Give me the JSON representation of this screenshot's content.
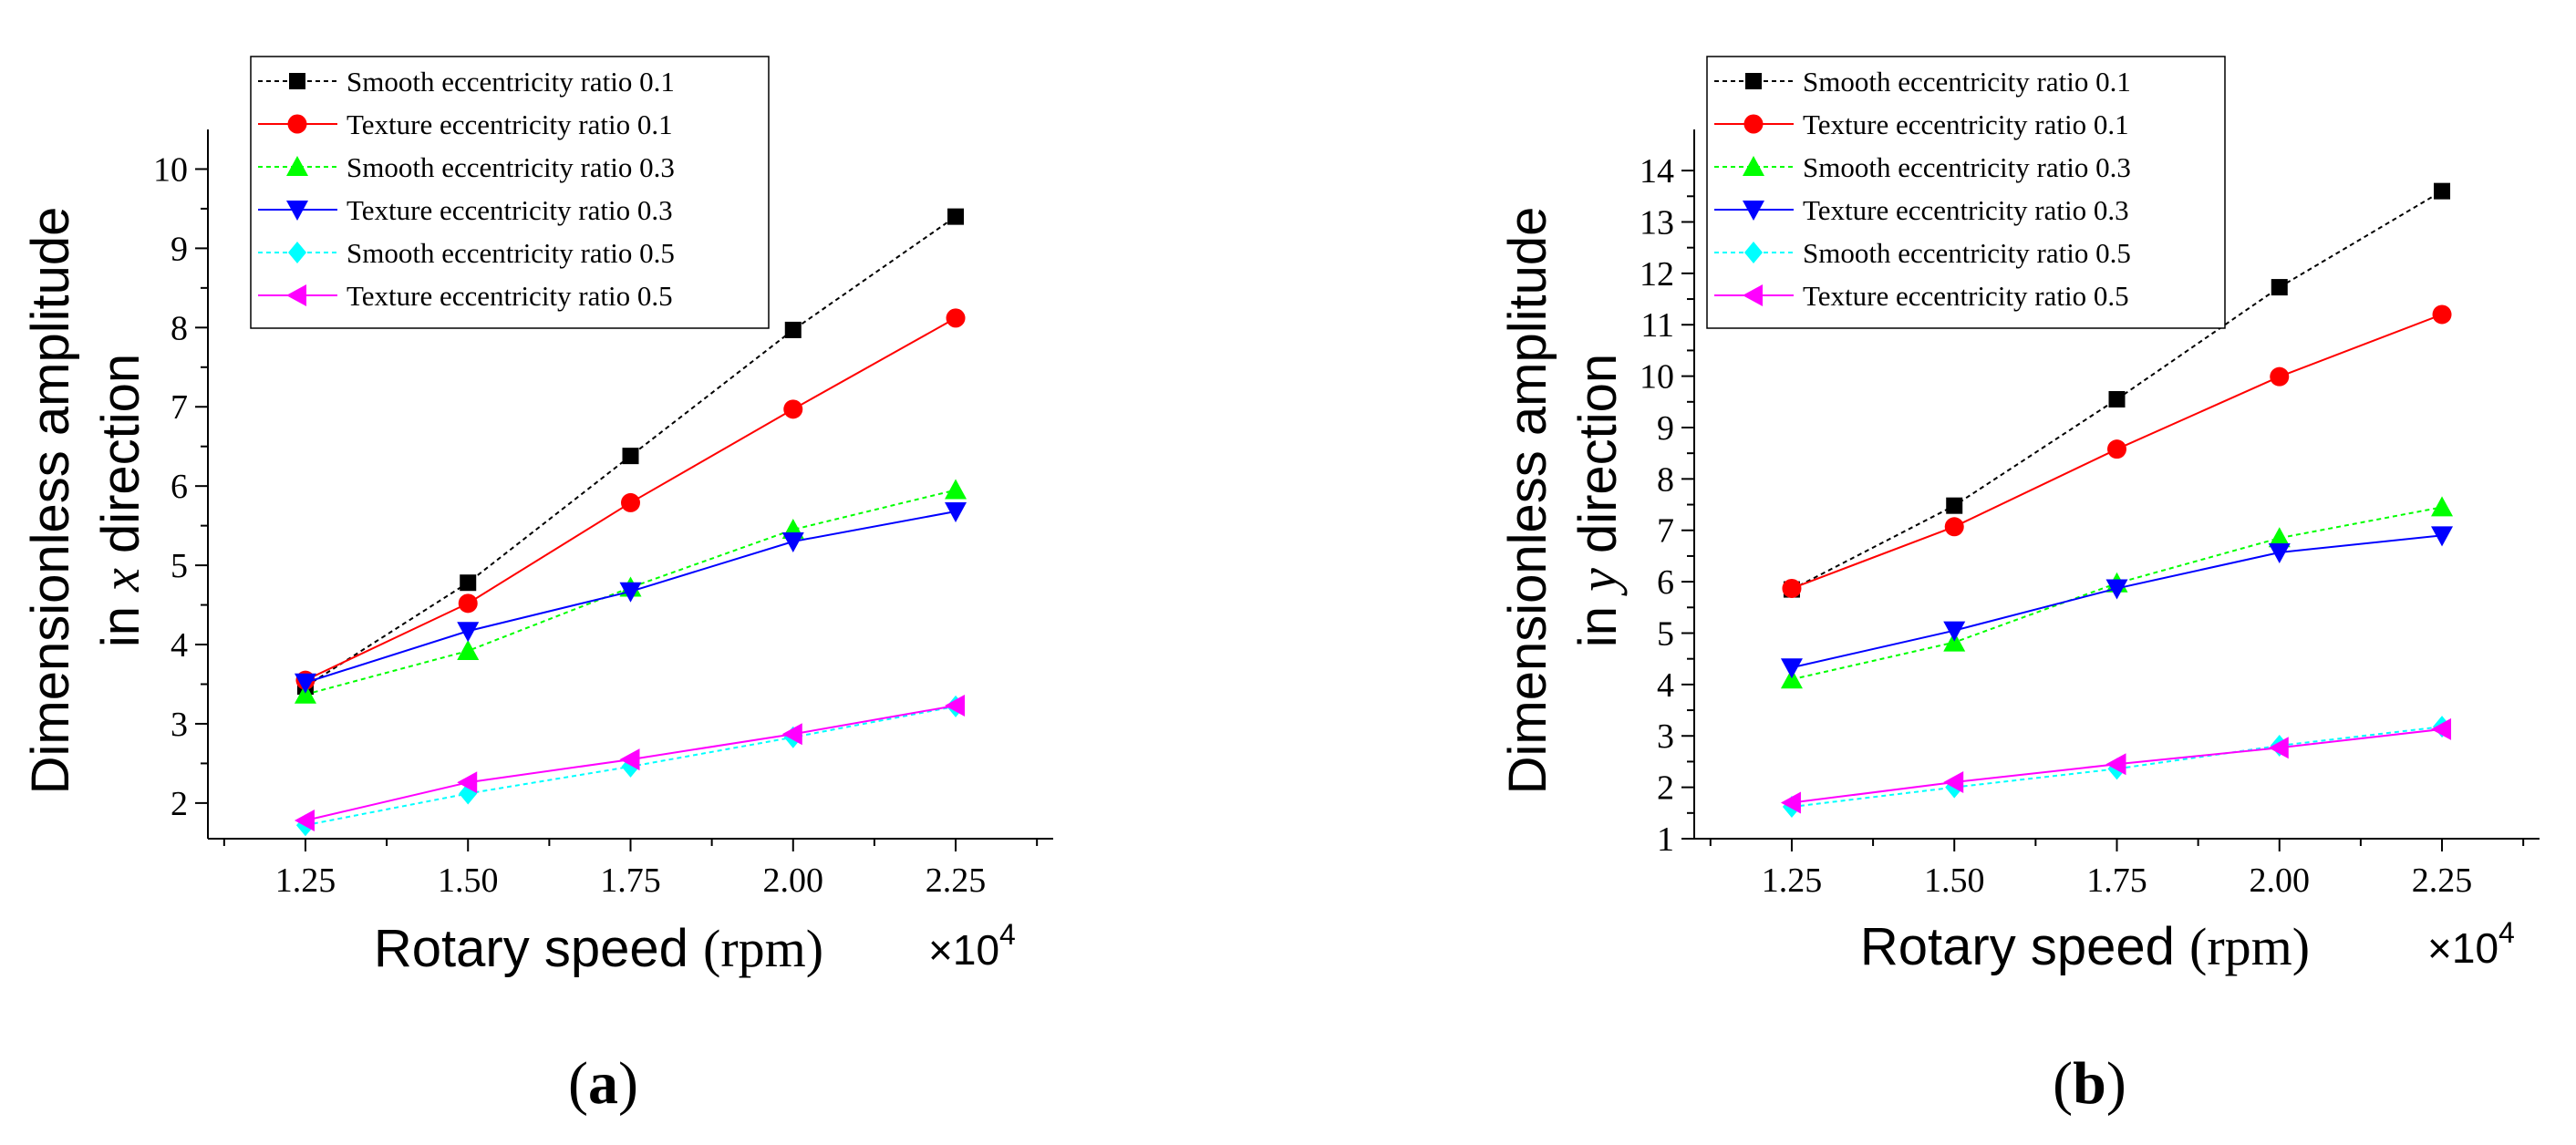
{
  "chart_data": [
    {
      "type": "line",
      "panel_label": {
        "open": "(",
        "letter": "a",
        "close": ")"
      },
      "x": [
        1.25,
        1.5,
        1.75,
        2.0,
        2.25
      ],
      "x_ticks": [
        "1.25",
        "1.50",
        "1.75",
        "2.00",
        "2.25"
      ],
      "xlim": [
        1.1,
        2.4
      ],
      "xlabel": {
        "text": "Rotary speed",
        "unit": "(rpm)"
      },
      "x_multiplier": {
        "base": "×10",
        "exp": "4"
      },
      "ylabel": {
        "line1": "Dimensionless amplitude",
        "line2_prefix": "in ",
        "line2_var": "x",
        "line2_suffix": " direction"
      },
      "y_ticks": [
        2,
        3,
        4,
        5,
        6,
        7,
        8,
        9,
        10
      ],
      "ylim": [
        1.55,
        10.5
      ],
      "legend_position": "top-left",
      "series": [
        {
          "name": "Smooth eccentricity ratio 0.1",
          "values": [
            3.47,
            4.78,
            6.38,
            7.97,
            9.4
          ],
          "color": "#000000",
          "marker": "square",
          "dashed": true
        },
        {
          "name": "Texture eccentricity ratio 0.1",
          "values": [
            3.55,
            4.52,
            5.79,
            6.97,
            8.12
          ],
          "color": "#ff0000",
          "marker": "circle",
          "dashed": false
        },
        {
          "name": "Smooth eccentricity ratio 0.3",
          "values": [
            3.37,
            3.92,
            4.72,
            5.45,
            5.95
          ],
          "color": "#00ff00",
          "marker": "triangle-up",
          "dashed": true
        },
        {
          "name": "Texture eccentricity ratio 0.3",
          "values": [
            3.52,
            4.17,
            4.67,
            5.3,
            5.68
          ],
          "color": "#0000ff",
          "marker": "triangle-down",
          "dashed": false
        },
        {
          "name": "Smooth eccentricity ratio 0.5",
          "values": [
            1.72,
            2.12,
            2.46,
            2.83,
            3.22
          ],
          "color": "#00ffff",
          "marker": "diamond",
          "dashed": true
        },
        {
          "name": "Texture eccentricity ratio 0.5",
          "values": [
            1.78,
            2.26,
            2.55,
            2.87,
            3.23
          ],
          "color": "#ff00ff",
          "marker": "triangle-left",
          "dashed": false
        }
      ]
    },
    {
      "type": "line",
      "panel_label": {
        "open": "(",
        "letter": "b",
        "close": ")"
      },
      "x": [
        1.25,
        1.5,
        1.75,
        2.0,
        2.25
      ],
      "x_ticks": [
        "1.25",
        "1.50",
        "1.75",
        "2.00",
        "2.25"
      ],
      "xlim": [
        1.1,
        2.4
      ],
      "xlabel": {
        "text": "Rotary speed",
        "unit": "(rpm)"
      },
      "x_multiplier": {
        "base": "×10",
        "exp": "4"
      },
      "ylabel": {
        "line1": "Dimensionless amplitude",
        "line2_prefix": "in ",
        "line2_var": "y",
        "line2_suffix": " direction"
      },
      "y_ticks": [
        1,
        2,
        3,
        4,
        5,
        6,
        7,
        8,
        9,
        10,
        11,
        12,
        13,
        14
      ],
      "ylim": [
        1,
        14.8
      ],
      "legend_position": "top-left",
      "series": [
        {
          "name": "Smooth eccentricity ratio 0.1",
          "values": [
            5.85,
            7.48,
            9.55,
            11.73,
            13.6
          ],
          "color": "#000000",
          "marker": "square",
          "dashed": true
        },
        {
          "name": "Texture eccentricity ratio 0.1",
          "values": [
            5.87,
            7.07,
            8.58,
            9.99,
            11.2
          ],
          "color": "#ff0000",
          "marker": "circle",
          "dashed": false
        },
        {
          "name": "Smooth eccentricity ratio 0.3",
          "values": [
            4.1,
            4.82,
            5.97,
            6.85,
            7.45
          ],
          "color": "#00ff00",
          "marker": "triangle-up",
          "dashed": true
        },
        {
          "name": "Texture eccentricity ratio 0.3",
          "values": [
            4.33,
            5.05,
            5.87,
            6.57,
            6.9
          ],
          "color": "#0000ff",
          "marker": "triangle-down",
          "dashed": false
        },
        {
          "name": "Smooth eccentricity ratio 0.5",
          "values": [
            1.62,
            2.0,
            2.36,
            2.81,
            3.18
          ],
          "color": "#00ffff",
          "marker": "diamond",
          "dashed": true
        },
        {
          "name": "Texture eccentricity ratio 0.5",
          "values": [
            1.7,
            2.1,
            2.45,
            2.77,
            3.13
          ],
          "color": "#ff00ff",
          "marker": "triangle-left",
          "dashed": false
        }
      ]
    }
  ]
}
